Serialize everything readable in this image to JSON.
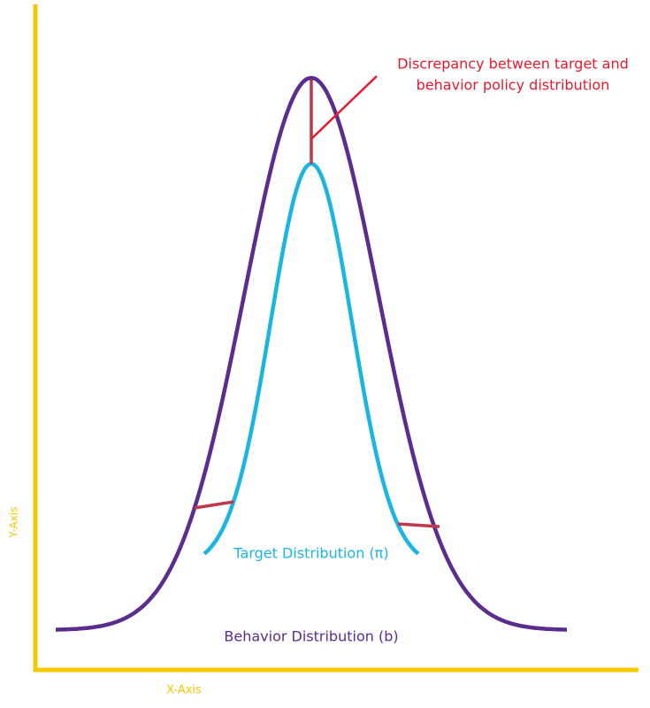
{
  "annotation": {
    "lines": [
      "Discrepancy between target and",
      "behavior policy distribution"
    ]
  },
  "labels": {
    "target": "Target Distribution (π)",
    "behavior": "Behavior Distribution (b)"
  },
  "axes": {
    "y": "Y-Axis",
    "x": "X-Axis"
  }
}
